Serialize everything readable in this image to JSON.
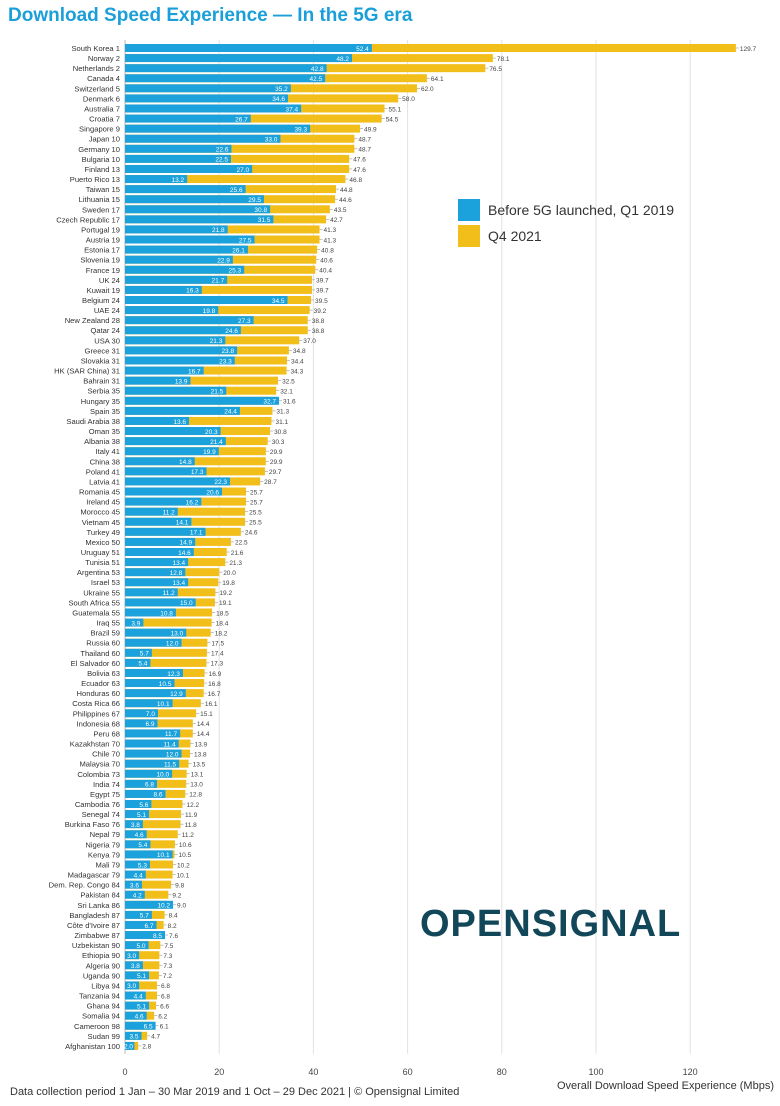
{
  "chart_data": {
    "type": "bar",
    "orientation": "horizontal",
    "title": "Download Speed Experience — In the 5G era",
    "xlabel": "Overall Download Speed Experience (Mbps)",
    "xlim": [
      0,
      130
    ],
    "xticks": [
      0,
      20,
      40,
      60,
      80,
      100,
      120
    ],
    "grid": true,
    "legend_placement": "right",
    "colors": {
      "before": "#1ba1dc",
      "q4": "#f2be1a"
    },
    "categories": [
      "South Korea 1",
      "Norway 2",
      "Netherlands 2",
      "Canada 4",
      "Switzerland 5",
      "Denmark 6",
      "Australia 7",
      "Croatia 7",
      "Singapore 9",
      "Japan 10",
      "Germany 10",
      "Bulgaria 10",
      "Finland 13",
      "Puerto Rico 13",
      "Taiwan 15",
      "Lithuania 15",
      "Sweden 17",
      "Czech Republic 17",
      "Portugal 19",
      "Austria 19",
      "Estonia 17",
      "Slovenia 19",
      "France 19",
      "UK 24",
      "Kuwait 19",
      "Belgium 24",
      "UAE 24",
      "New Zealand 28",
      "Qatar 24",
      "USA 30",
      "Greece 31",
      "Slovakia 31",
      "HK (SAR China) 31",
      "Bahrain 31",
      "Serbia 35",
      "Hungary 35",
      "Spain 35",
      "Saudi Arabia 38",
      "Oman 35",
      "Albania 38",
      "Italy 41",
      "China 38",
      "Poland 41",
      "Latvia 41",
      "Romania 45",
      "Ireland 45",
      "Morocco 45",
      "Vietnam 45",
      "Turkey 49",
      "Mexico 50",
      "Uruguay 51",
      "Tunisia 51",
      "Argentina 53",
      "Israel 53",
      "Ukraine 55",
      "South Africa 55",
      "Guatemala 55",
      "Iraq 55",
      "Brazil 59",
      "Russia 60",
      "Thailand 60",
      "El Salvador 60",
      "Bolivia 63",
      "Ecuador 63",
      "Honduras 60",
      "Costa Rica 66",
      "Philippines 67",
      "Indonesia 68",
      "Peru 68",
      "Kazakhstan 70",
      "Chile 70",
      "Malaysia 70",
      "Colombia 73",
      "India 74",
      "Egypt 75",
      "Cambodia 76",
      "Senegal 74",
      "Burkina Faso 76",
      "Nepal 79",
      "Nigeria 79",
      "Kenya 79",
      "Mali 79",
      "Madagascar 79",
      "Dem. Rep. Congo 84",
      "Pakistan 84",
      "Sri Lanka 86",
      "Bangladesh 87",
      "Côte d'Ivoire 87",
      "Zimbabwe 87",
      "Uzbekistan 90",
      "Ethiopia 90",
      "Algeria 90",
      "Uganda 90",
      "Libya 94",
      "Tanzania 94",
      "Ghana 94",
      "Somalia 94",
      "Cameroon 98",
      "Sudan 99",
      "Afghanistan 100"
    ],
    "series": [
      {
        "name": "Before 5G launched, Q1 2019",
        "values": [
          52.4,
          48.2,
          42.8,
          42.5,
          35.2,
          34.6,
          37.4,
          26.7,
          39.3,
          33.0,
          22.6,
          22.5,
          27.0,
          13.2,
          25.6,
          29.5,
          30.8,
          31.5,
          21.8,
          27.5,
          26.1,
          22.9,
          25.3,
          21.7,
          16.3,
          34.5,
          19.8,
          27.3,
          24.6,
          21.3,
          23.8,
          23.3,
          16.7,
          13.9,
          21.5,
          32.7,
          24.4,
          13.6,
          20.3,
          21.4,
          19.9,
          14.8,
          17.3,
          22.3,
          20.6,
          16.2,
          11.2,
          14.1,
          17.1,
          14.9,
          14.6,
          13.4,
          12.8,
          13.4,
          11.2,
          15.0,
          10.8,
          3.9,
          13.0,
          12.0,
          5.7,
          5.4,
          12.3,
          10.5,
          12.9,
          10.1,
          7.0,
          6.9,
          11.7,
          11.4,
          12.0,
          11.5,
          10.0,
          6.8,
          8.6,
          5.6,
          5.1,
          3.8,
          4.6,
          5.4,
          10.1,
          5.3,
          4.4,
          3.6,
          4.2,
          10.2,
          5.7,
          6.7,
          8.5,
          5.0,
          3.0,
          3.8,
          5.1,
          3.0,
          4.4,
          5.1,
          4.6,
          6.5,
          3.5,
          2.0
        ]
      },
      {
        "name": "Q4 2021",
        "values": [
          129.7,
          78.1,
          76.5,
          64.1,
          62.0,
          58.0,
          55.1,
          54.5,
          49.9,
          48.7,
          48.7,
          47.6,
          47.6,
          46.8,
          44.8,
          44.6,
          43.5,
          42.7,
          41.3,
          41.3,
          40.8,
          40.6,
          40.4,
          39.7,
          39.7,
          39.5,
          39.2,
          38.8,
          38.8,
          37.0,
          34.8,
          34.4,
          34.3,
          32.5,
          32.1,
          31.6,
          31.3,
          31.1,
          30.8,
          30.3,
          29.9,
          29.9,
          29.7,
          28.7,
          25.7,
          25.7,
          25.5,
          25.5,
          24.6,
          22.5,
          21.6,
          21.3,
          20.0,
          19.8,
          19.2,
          19.1,
          18.5,
          18.4,
          18.2,
          17.5,
          17.4,
          17.3,
          16.9,
          16.8,
          16.7,
          16.1,
          15.1,
          14.4,
          14.4,
          13.9,
          13.8,
          13.5,
          13.1,
          13.0,
          12.8,
          12.2,
          11.9,
          11.8,
          11.2,
          10.6,
          10.5,
          10.2,
          10.1,
          9.8,
          9.2,
          9.0,
          8.4,
          8.2,
          7.6,
          7.5,
          7.3,
          7.3,
          7.2,
          6.8,
          6.8,
          6.6,
          6.2,
          6.1,
          4.7,
          2.8
        ]
      }
    ]
  },
  "footer": "Data collection period 1 Jan – 30 Mar 2019 and 1 Oct – 29 Dec 2021 | © Opensignal Limited",
  "logo": "OPENSIGNAL"
}
